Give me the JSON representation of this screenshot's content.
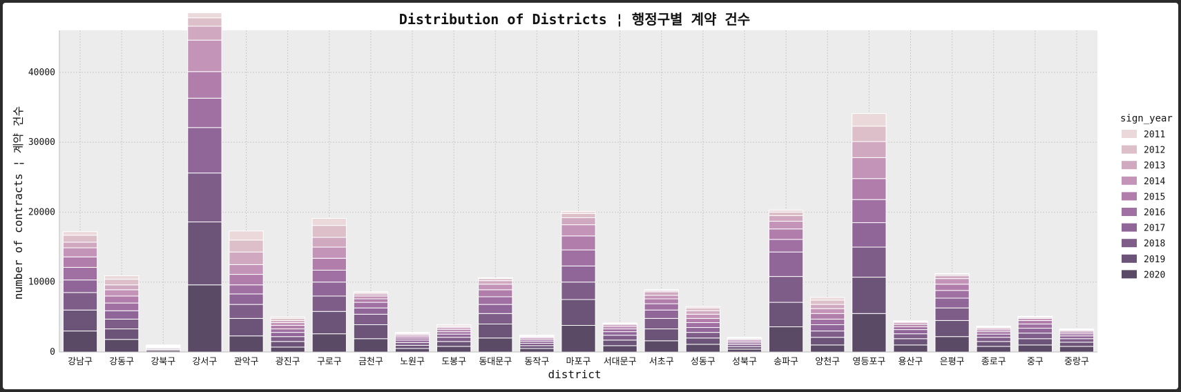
{
  "chart_data": {
    "type": "bar",
    "stacked": true,
    "title": "Distribution of Districts ¦ 행정구별 계약 건수",
    "xlabel": "district",
    "ylabel": "number of contracts ¦ 계약 건수",
    "ylim": [
      0,
      46000
    ],
    "yticks": [
      0,
      10000,
      20000,
      30000,
      40000
    ],
    "grid": true,
    "legend": {
      "title": "sign_year",
      "placement": "right"
    },
    "categories": [
      "강남구",
      "강동구",
      "강북구",
      "강서구",
      "관악구",
      "광진구",
      "구로구",
      "금천구",
      "노원구",
      "도봉구",
      "동대문구",
      "동작구",
      "마포구",
      "서대문구",
      "서초구",
      "성동구",
      "성북구",
      "송파구",
      "양천구",
      "영등포구",
      "용산구",
      "은평구",
      "종로구",
      "중구",
      "중랑구"
    ],
    "series": [
      {
        "name": "2020",
        "color": "#5b4a66",
        "values": [
          3000,
          1800,
          200,
          9600,
          2300,
          700,
          2600,
          1900,
          500,
          800,
          2000,
          500,
          3800,
          900,
          1600,
          1100,
          400,
          3600,
          1000,
          5500,
          1000,
          2200,
          800,
          1000,
          800
        ]
      },
      {
        "name": "2019",
        "color": "#6c5478",
        "values": [
          3000,
          1500,
          150,
          9000,
          2500,
          800,
          3200,
          2000,
          450,
          700,
          2000,
          400,
          3700,
          800,
          1700,
          900,
          350,
          3500,
          1100,
          5200,
          900,
          2300,
          700,
          900,
          600
        ]
      },
      {
        "name": "2018",
        "color": "#7e5d88",
        "values": [
          2500,
          1400,
          130,
          7000,
          2000,
          700,
          2200,
          1500,
          400,
          600,
          1500,
          350,
          2500,
          700,
          1500,
          800,
          300,
          3700,
          900,
          4300,
          700,
          1800,
          600,
          800,
          500
        ]
      },
      {
        "name": "2017",
        "color": "#8f6697",
        "values": [
          1800,
          1200,
          110,
          6500,
          1500,
          600,
          2000,
          900,
          350,
          450,
          1300,
          300,
          2300,
          500,
          1200,
          700,
          250,
          3500,
          900,
          3500,
          600,
          1400,
          450,
          700,
          400
        ]
      },
      {
        "name": "2016",
        "color": "#a070a3",
        "values": [
          1800,
          1100,
          100,
          4200,
          1300,
          500,
          1700,
          800,
          300,
          350,
          1100,
          250,
          2300,
          400,
          900,
          700,
          220,
          1800,
          800,
          3300,
          400,
          1100,
          350,
          600,
          300
        ]
      },
      {
        "name": "2015",
        "color": "#b17eac",
        "values": [
          1500,
          1000,
          90,
          3800,
          1500,
          500,
          1700,
          500,
          250,
          300,
          1000,
          200,
          2000,
          300,
          700,
          600,
          200,
          1500,
          800,
          3000,
          300,
          900,
          250,
          500,
          250
        ]
      },
      {
        "name": "2014",
        "color": "#c394b7",
        "values": [
          1300,
          900,
          80,
          4500,
          1400,
          400,
          1600,
          400,
          200,
          250,
          800,
          150,
          1600,
          250,
          500,
          600,
          150,
          1100,
          700,
          3000,
          250,
          800,
          200,
          300,
          200
        ]
      },
      {
        "name": "2013",
        "color": "#d0a9c0",
        "values": [
          800,
          700,
          60,
          2000,
          1800,
          300,
          1400,
          300,
          150,
          150,
          500,
          100,
          1000,
          150,
          500,
          500,
          100,
          800,
          600,
          2300,
          150,
          400,
          150,
          150,
          100
        ]
      },
      {
        "name": "2012",
        "color": "#dcbfc8",
        "values": [
          1000,
          800,
          50,
          1200,
          1700,
          300,
          1700,
          200,
          120,
          150,
          300,
          100,
          600,
          100,
          200,
          400,
          80,
          500,
          600,
          2200,
          100,
          200,
          100,
          100,
          100
        ]
      },
      {
        "name": "2011",
        "color": "#ead8da",
        "values": [
          500,
          500,
          30,
          700,
          1300,
          200,
          1000,
          100,
          80,
          150,
          100,
          50,
          300,
          50,
          100,
          200,
          50,
          300,
          400,
          1800,
          50,
          100,
          100,
          50,
          50
        ]
      }
    ]
  }
}
